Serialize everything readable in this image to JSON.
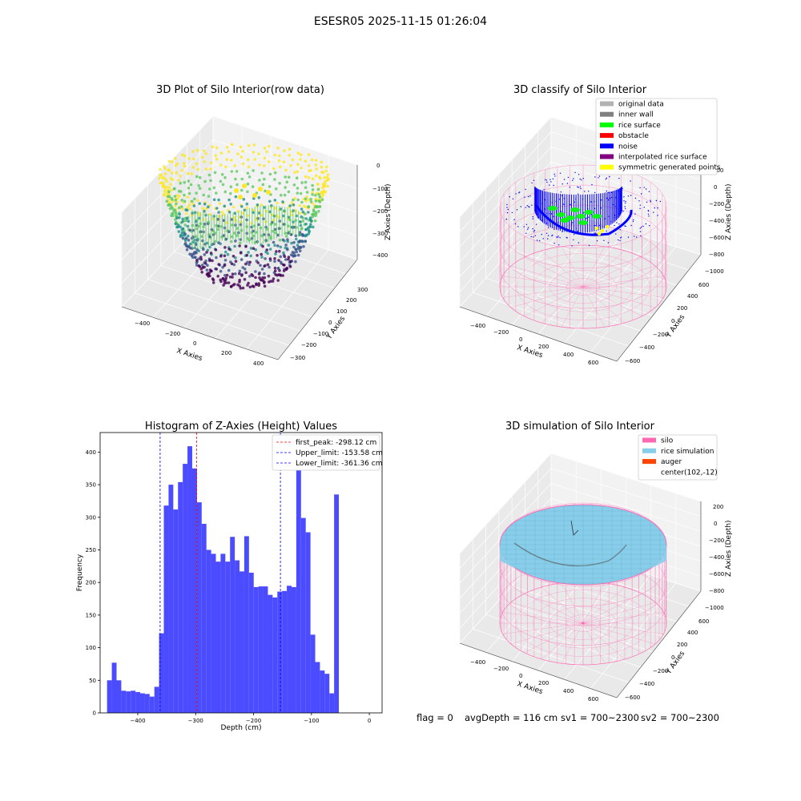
{
  "figure": {
    "suptitle": "ESESR05 2025-11-15 01:26:04"
  },
  "footer": {
    "flag": "flag = 0",
    "avg_depth": "avgDepth = 116 cm",
    "sv1": "sv1 = 700~2300",
    "sv2": "sv2 = 700~2300"
  },
  "chart_data": [
    {
      "type": "scatter3d",
      "title": "3D Plot of Silo Interior(row data)",
      "xlabel": "X Axies",
      "ylabel": "Y Axies",
      "zlabel": "Z Axies (Depth)",
      "x_ticks": [
        "−400",
        "−200",
        "0",
        "200",
        "400"
      ],
      "y_ticks": [
        "−300",
        "−200",
        "−100",
        "0",
        "100",
        "200",
        "300"
      ],
      "z_ticks": [
        "0",
        "−100",
        "−200",
        "−300",
        "−400"
      ],
      "xlim": [
        -450,
        450
      ],
      "ylim": [
        -350,
        350
      ],
      "zlim": [
        -450,
        0
      ],
      "colormap": "viridis",
      "colors": [
        "#440154",
        "#3b528b",
        "#21918c",
        "#5ec962",
        "#fde725"
      ]
    },
    {
      "type": "scatter3d",
      "title": "3D classify of Silo Interior",
      "xlabel": "X Axies",
      "ylabel": "Y Axies",
      "zlabel": "Z Axies (Depth)",
      "x_ticks": [
        "−400",
        "−200",
        "0",
        "200",
        "400",
        "600"
      ],
      "y_ticks": [
        "−600",
        "−400",
        "−200",
        "0",
        "200",
        "400",
        "600"
      ],
      "z_ticks": [
        "200",
        "0",
        "−200",
        "−400",
        "−600",
        "−800",
        "−1000"
      ],
      "legend": [
        {
          "label": "original data",
          "color": "#b3b3b3"
        },
        {
          "label": "inner wall",
          "color": "#808080"
        },
        {
          "label": "rice surface",
          "color": "#00ff00"
        },
        {
          "label": "obstacle",
          "color": "#ff0000"
        },
        {
          "label": "noise",
          "color": "#0000ff"
        },
        {
          "label": "interpolated rice surface",
          "color": "#800080"
        },
        {
          "label": "symmetric generated points",
          "color": "#ffff00"
        }
      ],
      "silo_color": "#ff69b4"
    },
    {
      "type": "bar",
      "title": "Histogram of Z-Axies (Height) Values",
      "xlabel": "Depth (cm)",
      "ylabel": "Frequency",
      "xlim": [
        -465,
        22
      ],
      "ylim": [
        0,
        430
      ],
      "x_ticks": [
        -400,
        -300,
        -200,
        -100,
        0
      ],
      "y_ticks": [
        0,
        50,
        100,
        150,
        200,
        250,
        300,
        350,
        400
      ],
      "bar_color": "#4b4bff",
      "bin_start": -453,
      "bin_width": 8.17,
      "values": [
        50,
        77,
        50,
        34,
        33,
        34,
        32,
        30,
        29,
        25,
        40,
        122,
        318,
        350,
        312,
        354,
        382,
        409,
        375,
        323,
        290,
        250,
        244,
        232,
        244,
        232,
        270,
        234,
        217,
        271,
        215,
        193,
        194,
        194,
        181,
        177,
        186,
        187,
        195,
        193,
        376,
        299,
        277,
        120,
        78,
        65,
        60,
        30,
        335
      ],
      "lines": [
        {
          "name": "first_peak: -298.12 cm",
          "x": -298.12,
          "color": "#ff0000"
        },
        {
          "name": "Upper_limit: -153.58 cm",
          "x": -153.58,
          "color": "#0000ff"
        },
        {
          "name": "Lower_limit: -361.36 cm",
          "x": -361.36,
          "color": "#0000ff"
        }
      ]
    },
    {
      "type": "surface3d",
      "title": "3D simulation of Silo Interior",
      "xlabel": "X Axies",
      "ylabel": "Y Axies",
      "zlabel": "Z Axies (Depth)",
      "x_ticks": [
        "−400",
        "−200",
        "0",
        "200",
        "400",
        "600"
      ],
      "y_ticks": [
        "−600",
        "−400",
        "−200",
        "0",
        "200",
        "400",
        "600"
      ],
      "z_ticks": [
        "200",
        "0",
        "−200",
        "−400",
        "−600",
        "−800",
        "−1000"
      ],
      "legend": [
        {
          "label": "silo",
          "color": "#ff69b4"
        },
        {
          "label": "rice simulation",
          "color": "#87ceeb"
        },
        {
          "label": "auger",
          "color": "#ff4500"
        },
        {
          "label": "center(102,-12)",
          "color": ""
        }
      ]
    }
  ]
}
